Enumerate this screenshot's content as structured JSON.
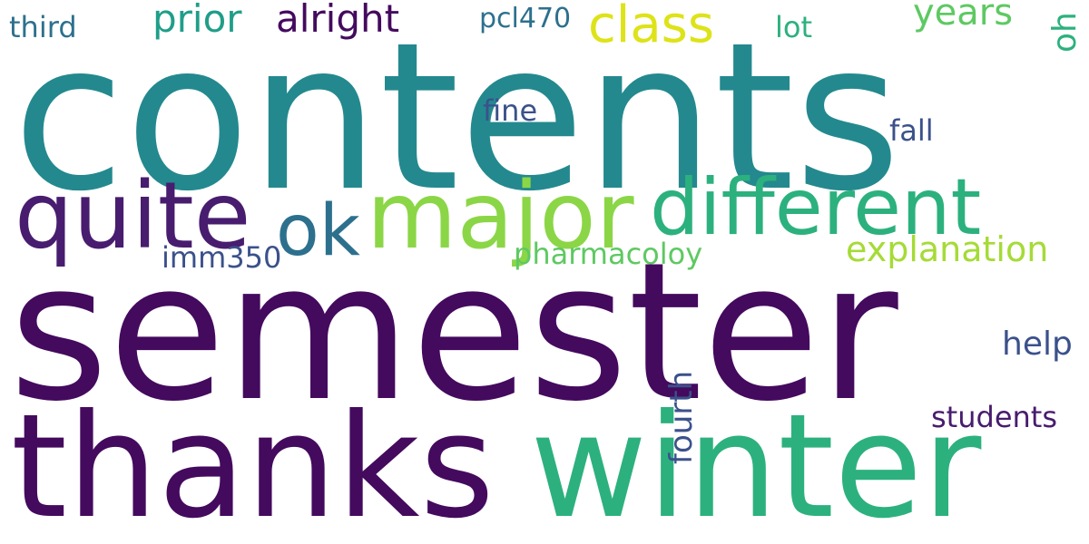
{
  "colors": {
    "background": "#ffffff",
    "teal": "#23898e",
    "purple_dark": "#440a5e",
    "purple": "#481c6e",
    "green_bright": "#8bd646",
    "green": "#2cb17e",
    "blue_teal": "#2d708e",
    "slate": "#3b518b",
    "yellow": "#dde318",
    "lime": "#a5db36",
    "light_green": "#5ec962",
    "teal_mid": "#1f9e89"
  },
  "words": [
    {
      "id": "contents",
      "text": "contents",
      "color": "#23898e"
    },
    {
      "id": "semester",
      "text": "semester",
      "color": "#440a5e"
    },
    {
      "id": "thanks",
      "text": "thanks",
      "color": "#440a5e"
    },
    {
      "id": "winter",
      "text": "winter",
      "color": "#2cb17e"
    },
    {
      "id": "quite",
      "text": "quite",
      "color": "#481c6e"
    },
    {
      "id": "major",
      "text": "major",
      "color": "#8bd646"
    },
    {
      "id": "different",
      "text": "different",
      "color": "#2cb17e"
    },
    {
      "id": "ok",
      "text": "ok",
      "color": "#2d708e"
    },
    {
      "id": "class",
      "text": "class",
      "color": "#dde318"
    },
    {
      "id": "prior",
      "text": "prior",
      "color": "#1f9e89"
    },
    {
      "id": "alright",
      "text": "alright",
      "color": "#440a5e"
    },
    {
      "id": "years",
      "text": "years",
      "color": "#5ec962"
    },
    {
      "id": "third",
      "text": "third",
      "color": "#2d708e"
    },
    {
      "id": "pcl470",
      "text": "pcl470",
      "color": "#2d708e"
    },
    {
      "id": "lot",
      "text": "lot",
      "color": "#2cb17e"
    },
    {
      "id": "oh",
      "text": "oh",
      "color": "#2cb17e"
    },
    {
      "id": "fine",
      "text": "fine",
      "color": "#3b518b"
    },
    {
      "id": "fall",
      "text": "fall",
      "color": "#3b518b"
    },
    {
      "id": "explanation",
      "text": "explanation",
      "color": "#a5db36"
    },
    {
      "id": "pharmacoloy",
      "text": "pharmacoloy",
      "color": "#5ec962"
    },
    {
      "id": "imm350",
      "text": "imm350",
      "color": "#3b518b"
    },
    {
      "id": "help",
      "text": "help",
      "color": "#3b518b"
    },
    {
      "id": "fourth",
      "text": "fourth",
      "color": "#3b518b"
    },
    {
      "id": "students",
      "text": "students",
      "color": "#481c6e"
    }
  ]
}
